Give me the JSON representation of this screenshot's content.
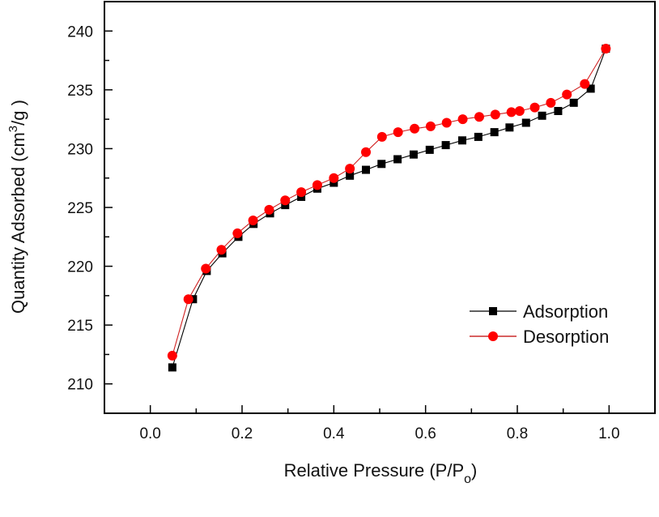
{
  "chart_data": {
    "type": "line",
    "title": "",
    "xlabel": "Relative Pressure (P/P",
    "xlabel_sub": "o",
    "xlabel_end": ")",
    "ylabel_main": "Quantity Adsorbed (cm",
    "ylabel_sup": "3",
    "ylabel_end": "/g )",
    "xlim": [
      -0.1,
      1.1
    ],
    "ylim": [
      207.5,
      242.5
    ],
    "xticks": [
      0.0,
      0.2,
      0.4,
      0.6,
      0.8,
      1.0
    ],
    "xtick_labels": [
      "0.0",
      "0.2",
      "0.4",
      "0.6",
      "0.8",
      "1.0"
    ],
    "xminor": [
      0.1,
      0.3,
      0.5,
      0.7,
      0.9
    ],
    "yticks": [
      210,
      215,
      220,
      225,
      230,
      235,
      240
    ],
    "ytick_labels": [
      "210",
      "215",
      "220",
      "225",
      "230",
      "235",
      "240"
    ],
    "yminor": [
      212.5,
      217.5,
      222.5,
      227.5,
      232.5,
      237.5
    ],
    "grid": false,
    "legend_position": "center-right",
    "series": [
      {
        "name": "Adsorption",
        "color": "#000000",
        "marker": "square",
        "x": [
          0.048,
          0.093,
          0.123,
          0.157,
          0.192,
          0.225,
          0.261,
          0.294,
          0.329,
          0.364,
          0.4,
          0.435,
          0.47,
          0.504,
          0.539,
          0.574,
          0.609,
          0.644,
          0.68,
          0.715,
          0.75,
          0.783,
          0.819,
          0.854,
          0.889,
          0.923,
          0.96,
          0.993
        ],
        "y": [
          211.4,
          217.2,
          219.6,
          221.1,
          222.5,
          223.6,
          224.5,
          225.2,
          225.9,
          226.6,
          227.1,
          227.7,
          228.2,
          228.7,
          229.1,
          229.5,
          229.9,
          230.3,
          230.7,
          231.0,
          231.4,
          231.8,
          232.2,
          232.8,
          233.2,
          233.9,
          235.1,
          238.5
        ]
      },
      {
        "name": "Desorption",
        "color": "#ff0000",
        "marker": "circle",
        "x": [
          0.048,
          0.083,
          0.121,
          0.155,
          0.19,
          0.224,
          0.259,
          0.294,
          0.329,
          0.364,
          0.4,
          0.435,
          0.47,
          0.505,
          0.54,
          0.576,
          0.611,
          0.646,
          0.681,
          0.717,
          0.752,
          0.787,
          0.805,
          0.838,
          0.873,
          0.908,
          0.947,
          0.993
        ],
        "y": [
          212.4,
          217.2,
          219.8,
          221.4,
          222.8,
          223.9,
          224.8,
          225.6,
          226.3,
          226.9,
          227.5,
          228.3,
          229.7,
          231.0,
          231.4,
          231.7,
          231.9,
          232.2,
          232.5,
          232.7,
          232.9,
          233.1,
          233.2,
          233.5,
          233.9,
          234.6,
          235.5,
          238.5
        ]
      }
    ]
  }
}
